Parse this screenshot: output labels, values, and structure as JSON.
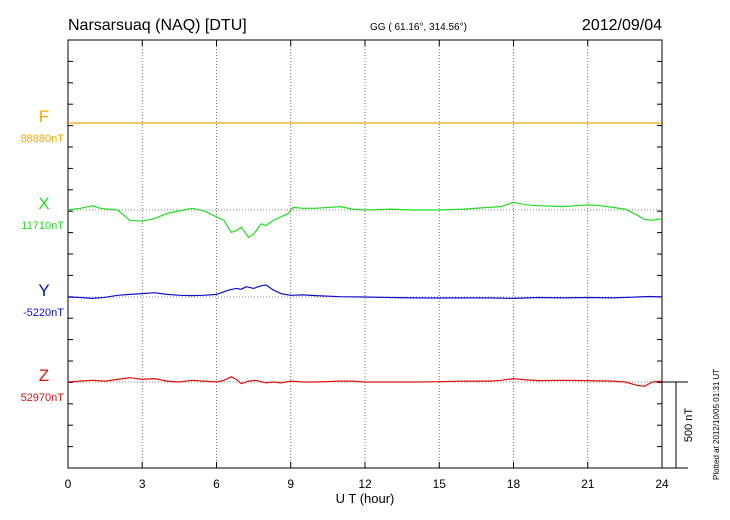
{
  "header": {
    "station": "Narsarsuaq (NAQ)  [DTU]",
    "coords": "GG ( 61.16°, 314.56°)",
    "date": "2012/09/04"
  },
  "plotted_note": "Plotted at 2012/10/05 01:31  UT",
  "scale_bar_label": "500 nT",
  "chart_data": {
    "type": "line",
    "title": "Narsarsuaq (NAQ)  [DTU]",
    "xlabel": "U T (hour)",
    "xlim": [
      0,
      24
    ],
    "xticks": [
      "0",
      "3",
      "6",
      "9",
      "12",
      "15",
      "18",
      "21",
      "24"
    ],
    "grid": true,
    "scale_nT": 500,
    "series": [
      {
        "name": "F",
        "baseline_label": "88880nT",
        "color": "#f5a800",
        "x": [
          0,
          24
        ],
        "y": [
          0,
          0
        ]
      },
      {
        "name": "X",
        "baseline_label": "11710nT",
        "color": "#22dd22",
        "x": [
          0,
          0.5,
          1.0,
          1.3,
          2.0,
          2.5,
          3.0,
          3.5,
          4.0,
          4.5,
          5.0,
          5.5,
          6.0,
          6.3,
          6.6,
          6.8,
          7.0,
          7.3,
          7.5,
          7.8,
          8.0,
          8.3,
          8.6,
          8.9,
          9.1,
          9.5,
          10.0,
          11.0,
          11.5,
          12.0,
          13.0,
          14.0,
          15.0,
          16.0,
          17.0,
          17.5,
          18.0,
          18.5,
          19.0,
          20.0,
          21.0,
          21.5,
          22.0,
          22.5,
          23.0,
          23.3,
          23.6,
          24.0
        ],
        "y": [
          0,
          10,
          25,
          10,
          0,
          -60,
          -65,
          -50,
          -20,
          -5,
          10,
          -5,
          -40,
          -60,
          -130,
          -120,
          -100,
          -160,
          -140,
          -80,
          -90,
          -60,
          -40,
          -20,
          15,
          10,
          10,
          20,
          5,
          0,
          5,
          0,
          0,
          5,
          15,
          20,
          45,
          30,
          25,
          20,
          30,
          25,
          15,
          5,
          -30,
          -55,
          -60,
          -50
        ]
      },
      {
        "name": "Y",
        "baseline_label": "-5220nT",
        "color": "#1010cc",
        "x": [
          0,
          0.5,
          1.0,
          1.5,
          2.0,
          2.5,
          3.0,
          3.5,
          4.0,
          4.5,
          5.0,
          5.5,
          6.0,
          6.5,
          6.8,
          7.0,
          7.2,
          7.5,
          7.8,
          8.0,
          8.3,
          8.6,
          9.0,
          9.5,
          10.0,
          11.0,
          12.0,
          13.0,
          14.0,
          15.0,
          16.0,
          17.0,
          18.0,
          19.0,
          20.0,
          21.0,
          22.0,
          23.0,
          23.5,
          24.0
        ],
        "y": [
          0,
          -3,
          -8,
          -2,
          10,
          15,
          20,
          25,
          15,
          10,
          8,
          10,
          15,
          40,
          50,
          45,
          60,
          50,
          65,
          70,
          40,
          20,
          10,
          12,
          8,
          2,
          0,
          -3,
          -5,
          -6,
          -5,
          -5,
          -8,
          -3,
          -5,
          -3,
          -5,
          0,
          3,
          0
        ]
      },
      {
        "name": "Z",
        "baseline_label": "52970nT",
        "color": "#dd1111",
        "x": [
          0,
          0.5,
          1.0,
          1.5,
          2.0,
          2.5,
          3.0,
          3.5,
          4.0,
          4.5,
          5.0,
          5.5,
          6.0,
          6.3,
          6.6,
          6.8,
          7.0,
          7.3,
          7.6,
          8.0,
          8.3,
          8.6,
          9.0,
          9.5,
          10.0,
          11.0,
          11.5,
          12.0,
          13.0,
          14.0,
          15.0,
          16.0,
          17.0,
          17.5,
          18.0,
          18.5,
          19.0,
          20.0,
          21.0,
          22.0,
          22.5,
          23.0,
          23.3,
          23.6,
          24.0
        ],
        "y": [
          0,
          5,
          10,
          5,
          15,
          25,
          15,
          20,
          5,
          0,
          10,
          5,
          0,
          10,
          30,
          15,
          -10,
          5,
          10,
          -5,
          0,
          -5,
          5,
          0,
          0,
          5,
          5,
          0,
          0,
          0,
          2,
          5,
          5,
          10,
          20,
          12,
          8,
          10,
          8,
          5,
          0,
          -20,
          -25,
          0,
          5
        ]
      }
    ]
  }
}
